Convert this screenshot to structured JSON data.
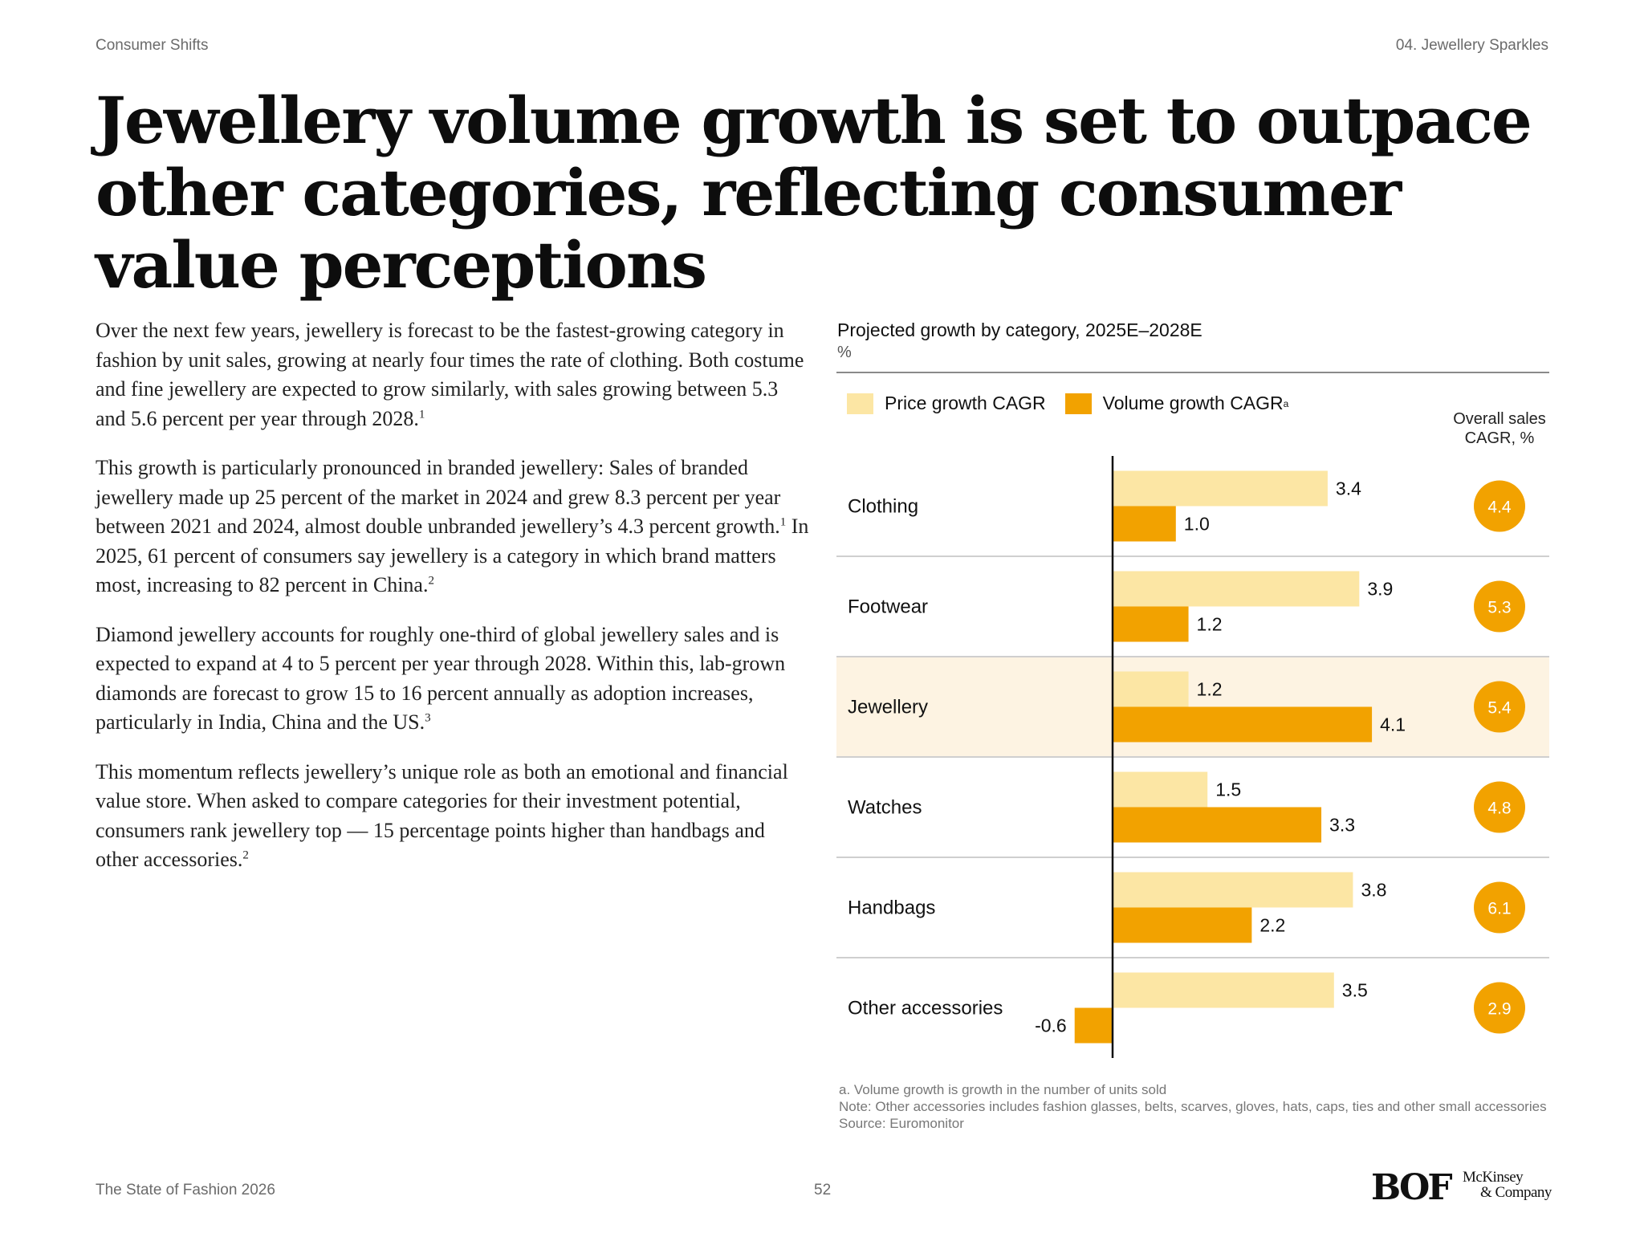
{
  "header": {
    "section": "Consumer Shifts",
    "chapter": "04. Jewellery Sparkles"
  },
  "title": "Jewellery volume growth is set to outpace other categories, reflecting consumer value perceptions",
  "paragraphs": [
    [
      {
        "t": "Over the next few years, jewellery is forecast to be the fastest-growing category in fashion by unit sales, growing at nearly four times the rate of clothing. Both costume and fine jewellery are expected to grow similarly, with sales growing between 5.3 and 5.6 percent per year through 2028."
      },
      {
        "s": "1"
      }
    ],
    [
      {
        "t": "This growth is particularly pronounced in branded jewellery: Sales of branded jewellery made up 25 percent of the market in 2024 and grew 8.3 percent per year between 2021 and 2024, almost double unbranded jewellery’s 4.3 percent growth."
      },
      {
        "s": "1"
      },
      {
        "t": " In 2025, 61 percent of consumers say jewellery is a category in which brand matters most, increasing to 82 percent in China."
      },
      {
        "s": "2"
      }
    ],
    [
      {
        "t": "Diamond jewellery accounts for roughly one-third of global jewellery sales and is expected to expand at 4 to 5 percent per year through 2028. Within this, lab-grown diamonds are forecast to grow 15 to 16 percent annually as adoption increases, particularly in India, China and the US."
      },
      {
        "s": "3"
      }
    ],
    [
      {
        "t": "This momentum reflects jewellery’s unique role as both an emotional and financial value store. When asked to compare categories for their investment potential, consumers rank jewellery top — 15 percentage points higher than handbags and other accessories."
      },
      {
        "s": "2"
      }
    ]
  ],
  "chart_data": {
    "type": "bar",
    "orientation": "horizontal",
    "title": "Projected growth by category, 2025E–2028E",
    "unit": "%",
    "categories": [
      "Clothing",
      "Footwear",
      "Jewellery",
      "Watches",
      "Handbags",
      "Other accessories"
    ],
    "highlight": "Jewellery",
    "series": [
      {
        "name": "Price growth CAGR",
        "color": "#fce6a4",
        "values": [
          3.4,
          3.9,
          1.2,
          1.5,
          3.8,
          3.5
        ]
      },
      {
        "name": "Volume growth CAGR",
        "name_sup": "a",
        "color": "#f2a200",
        "values": [
          1.0,
          1.2,
          4.1,
          3.3,
          2.2,
          -0.6
        ]
      }
    ],
    "overall_header": "Overall sales CAGR, %",
    "overall_values": [
      "4.4",
      "5.3",
      "5.4",
      "4.8",
      "6.1",
      "2.9"
    ],
    "overall_color": "#f2a200",
    "highlight_color": "#fdf3e2",
    "legend_position": "top-left",
    "grid": false
  },
  "footnotes": [
    "a. Volume growth is growth in the number of units sold",
    "Note: Other accessories includes fashion glasses, belts, scarves, gloves, hats, caps, ties and other small accessories",
    "Source: Euromonitor"
  ],
  "footer": {
    "publication": "The State of Fashion 2026",
    "page": "52"
  },
  "logos": {
    "bof": "BOF",
    "mckinsey_1": "McKinsey",
    "mckinsey_2": "& Company"
  }
}
